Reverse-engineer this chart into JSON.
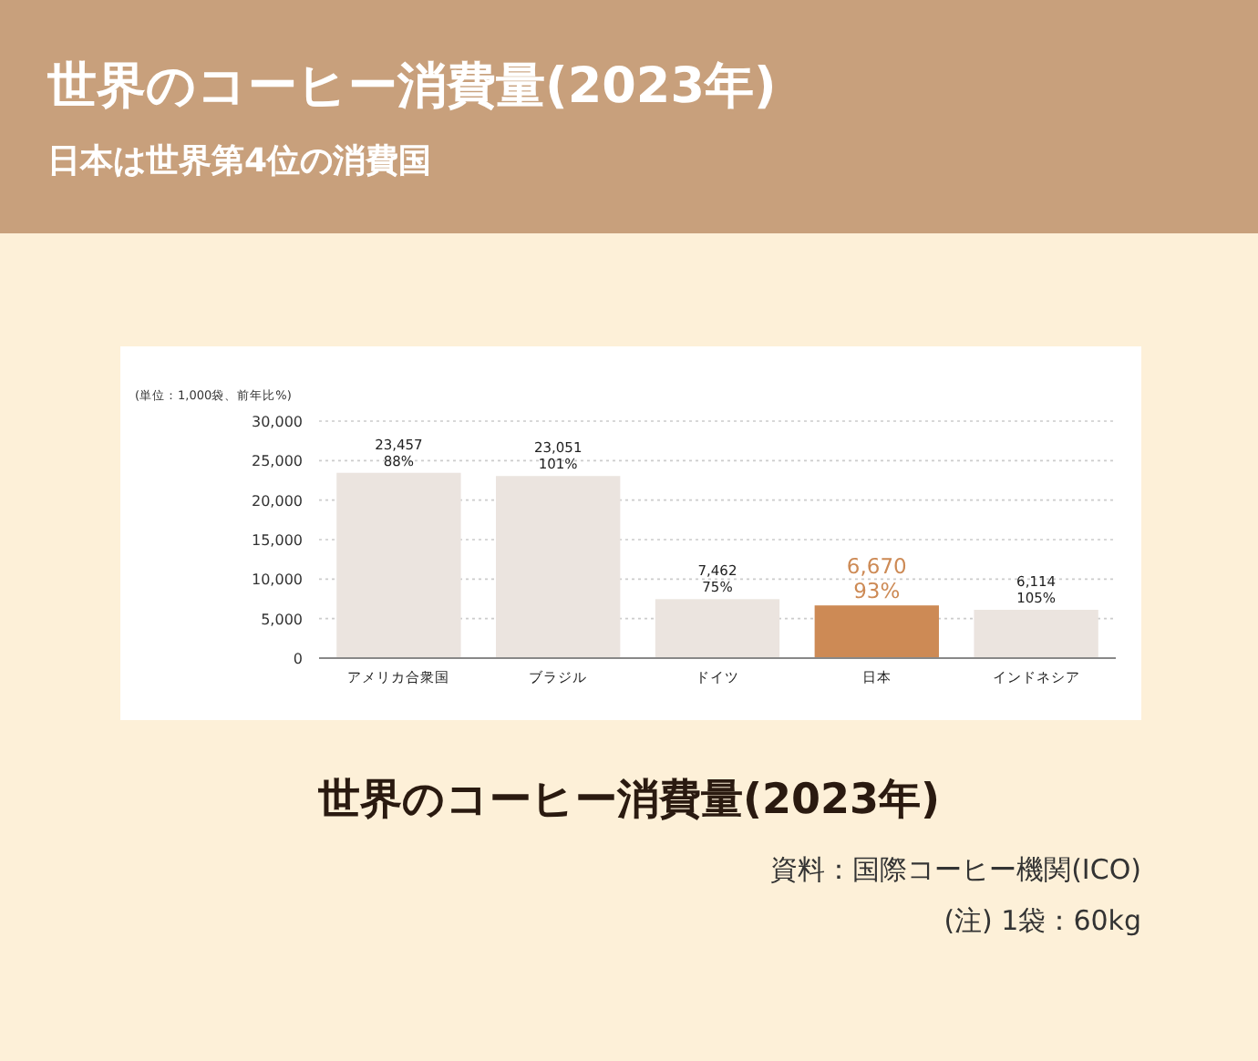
{
  "chart_data": {
    "type": "bar",
    "title": "世界のコーヒー消費量(2023年)",
    "subtitle": "日本は世界第4位の消費国",
    "categories": [
      "アメリカ合衆国",
      "ブラジル",
      "ドイツ",
      "日本",
      "インドネシア"
    ],
    "values": [
      23457,
      23051,
      7462,
      6670,
      6114
    ],
    "colors": [
      "#ebe4df",
      "#ebe4df",
      "#ebe4df",
      "#cd8a55",
      "#ebe4df"
    ],
    "value_labels": [
      "23,457\n88%",
      "23,051\n101%",
      "7,462\n75%",
      "6,670\n93%",
      "6,114\n105%"
    ],
    "ylim": [
      0,
      30000
    ],
    "yticks": [
      {
        "value": 0,
        "label": "0"
      },
      {
        "value": 5000,
        "label": "5,000"
      },
      {
        "value": 10000,
        "label": "10,000"
      },
      {
        "value": 15000,
        "label": "15,000"
      },
      {
        "value": 20000,
        "label": "20,000"
      },
      {
        "value": 25000,
        "label": "25,000"
      },
      {
        "value": 30000,
        "label": "30,000"
      }
    ],
    "grid": "y",
    "annotations": [
      "(単位：1,000袋、前年比%)",
      "世界のコーヒー消費量(2023年)",
      "資料：国際コーヒー機関(ICO)",
      "(注) 1袋：60kg"
    ]
  }
}
